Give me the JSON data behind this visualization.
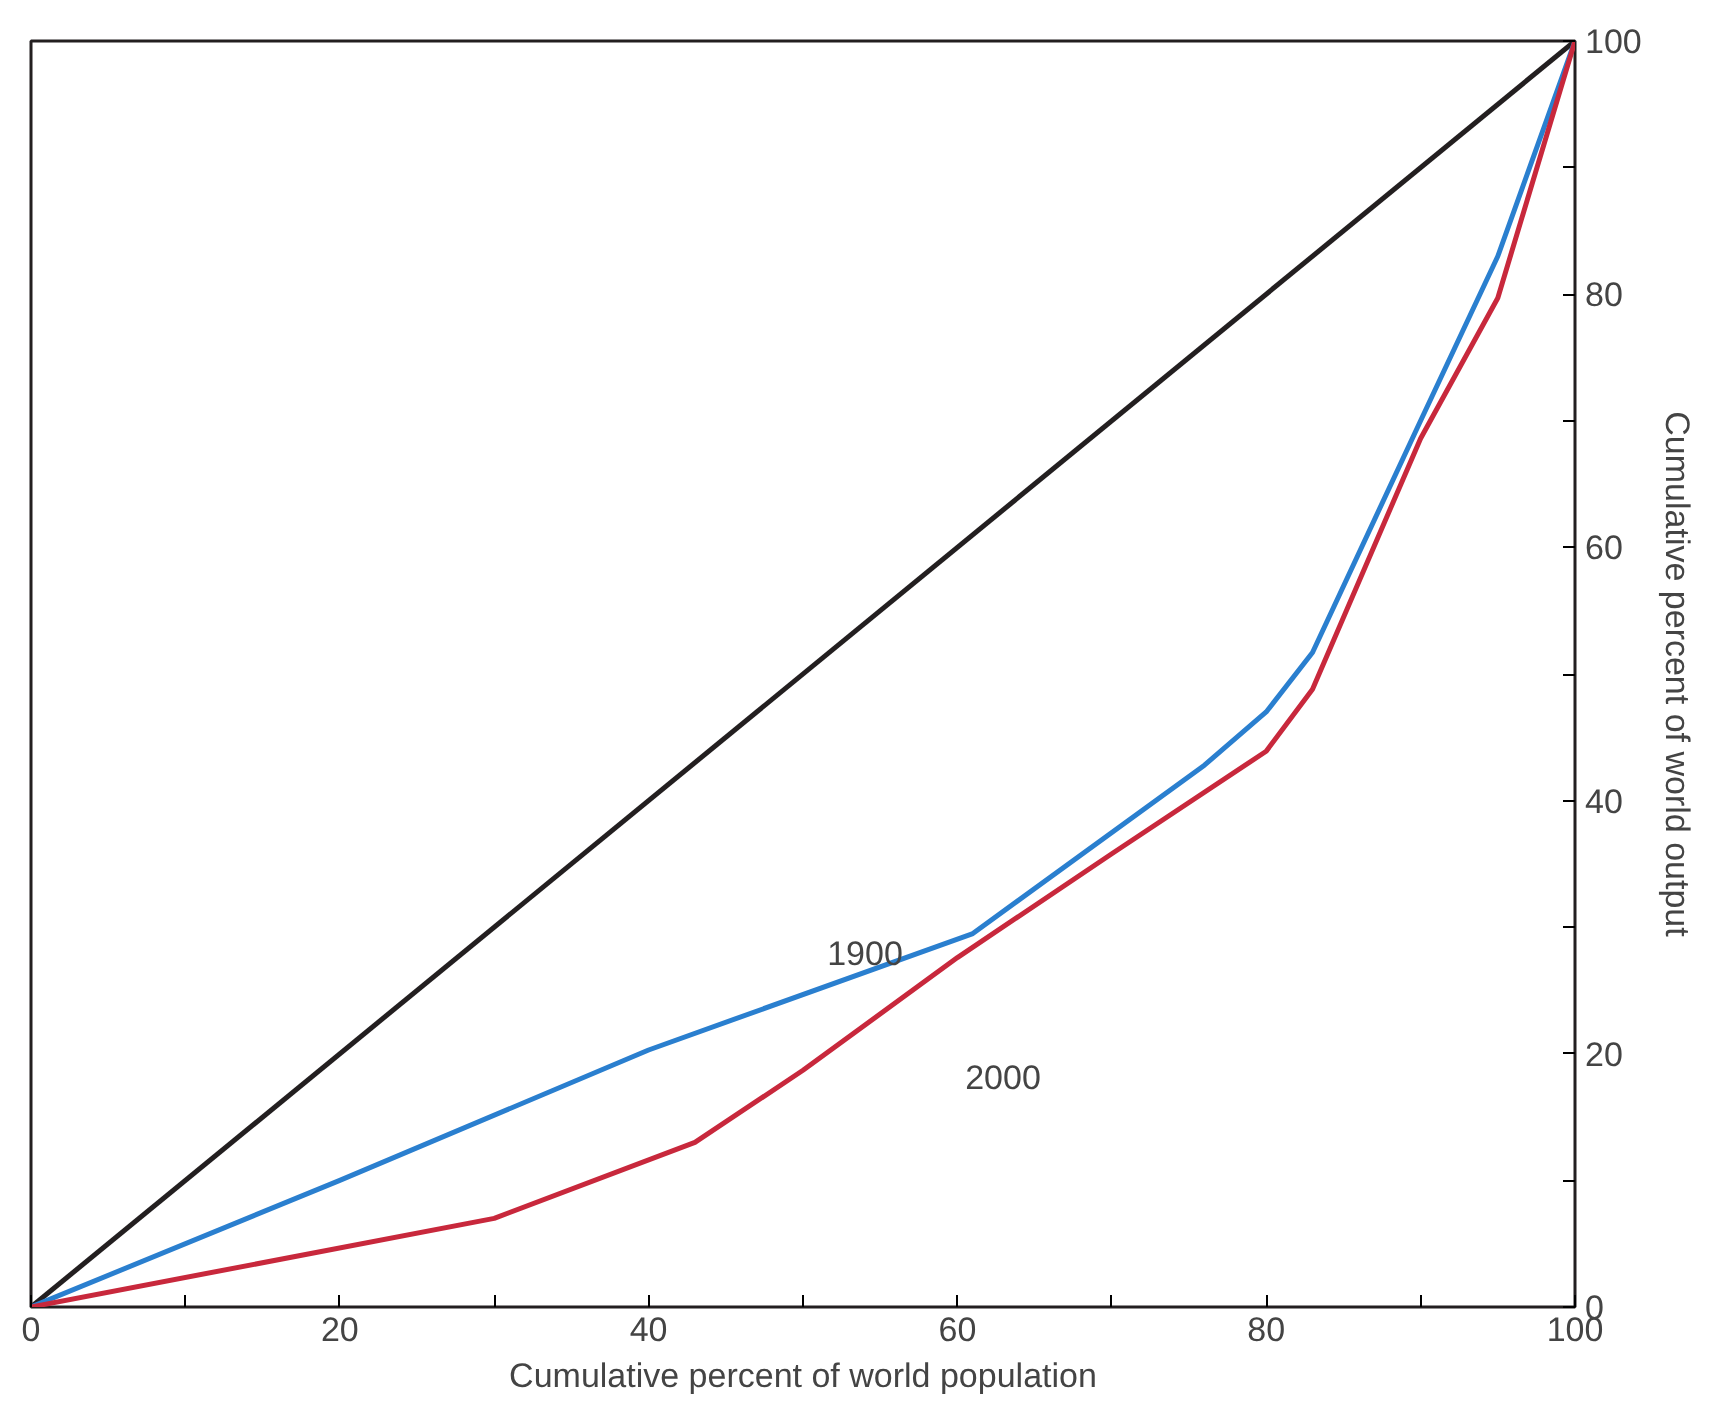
{
  "chart_data": {
    "type": "line",
    "xlabel": "Cumulative percent of world population",
    "ylabel": "Cumulative percent of world output",
    "xlim": [
      0,
      100
    ],
    "ylim": [
      0,
      100
    ],
    "xticks": [
      0,
      {
        "value": 10,
        "label": null
      },
      20,
      {
        "value": 30,
        "label": null
      },
      40,
      {
        "value": 50,
        "label": null
      },
      60,
      {
        "value": 70,
        "label": null
      },
      80,
      {
        "value": 90,
        "label": null
      },
      100
    ],
    "yticks": [
      0,
      {
        "value": 10,
        "label": null
      },
      20,
      {
        "value": 30,
        "label": null
      },
      40,
      {
        "value": 50,
        "label": null
      },
      60,
      {
        "value": 70,
        "label": null
      },
      80,
      {
        "value": 90,
        "label": null
      },
      100
    ],
    "grid": false,
    "marker": "none",
    "line_style": "solid",
    "series": [
      {
        "color": "#231f20",
        "x": [
          0,
          100
        ],
        "values": [
          0,
          100
        ]
      },
      {
        "color": "#2a7fcf",
        "x": [
          0,
          20,
          40,
          61,
          76,
          80,
          83,
          90,
          95,
          100
        ],
        "values": [
          0,
          10,
          20.3,
          29.5,
          42.8,
          47,
          51.7,
          70,
          83,
          100
        ]
      },
      {
        "color": "#c8283c",
        "x": [
          0,
          30,
          43,
          50,
          60,
          70,
          80,
          83,
          90,
          95,
          100
        ],
        "values": [
          0,
          7,
          13,
          18.7,
          27.6,
          35.8,
          43.9,
          48.8,
          68.6,
          79.7,
          100
        ]
      }
    ],
    "annotations": [
      "1900",
      "2000"
    ]
  }
}
